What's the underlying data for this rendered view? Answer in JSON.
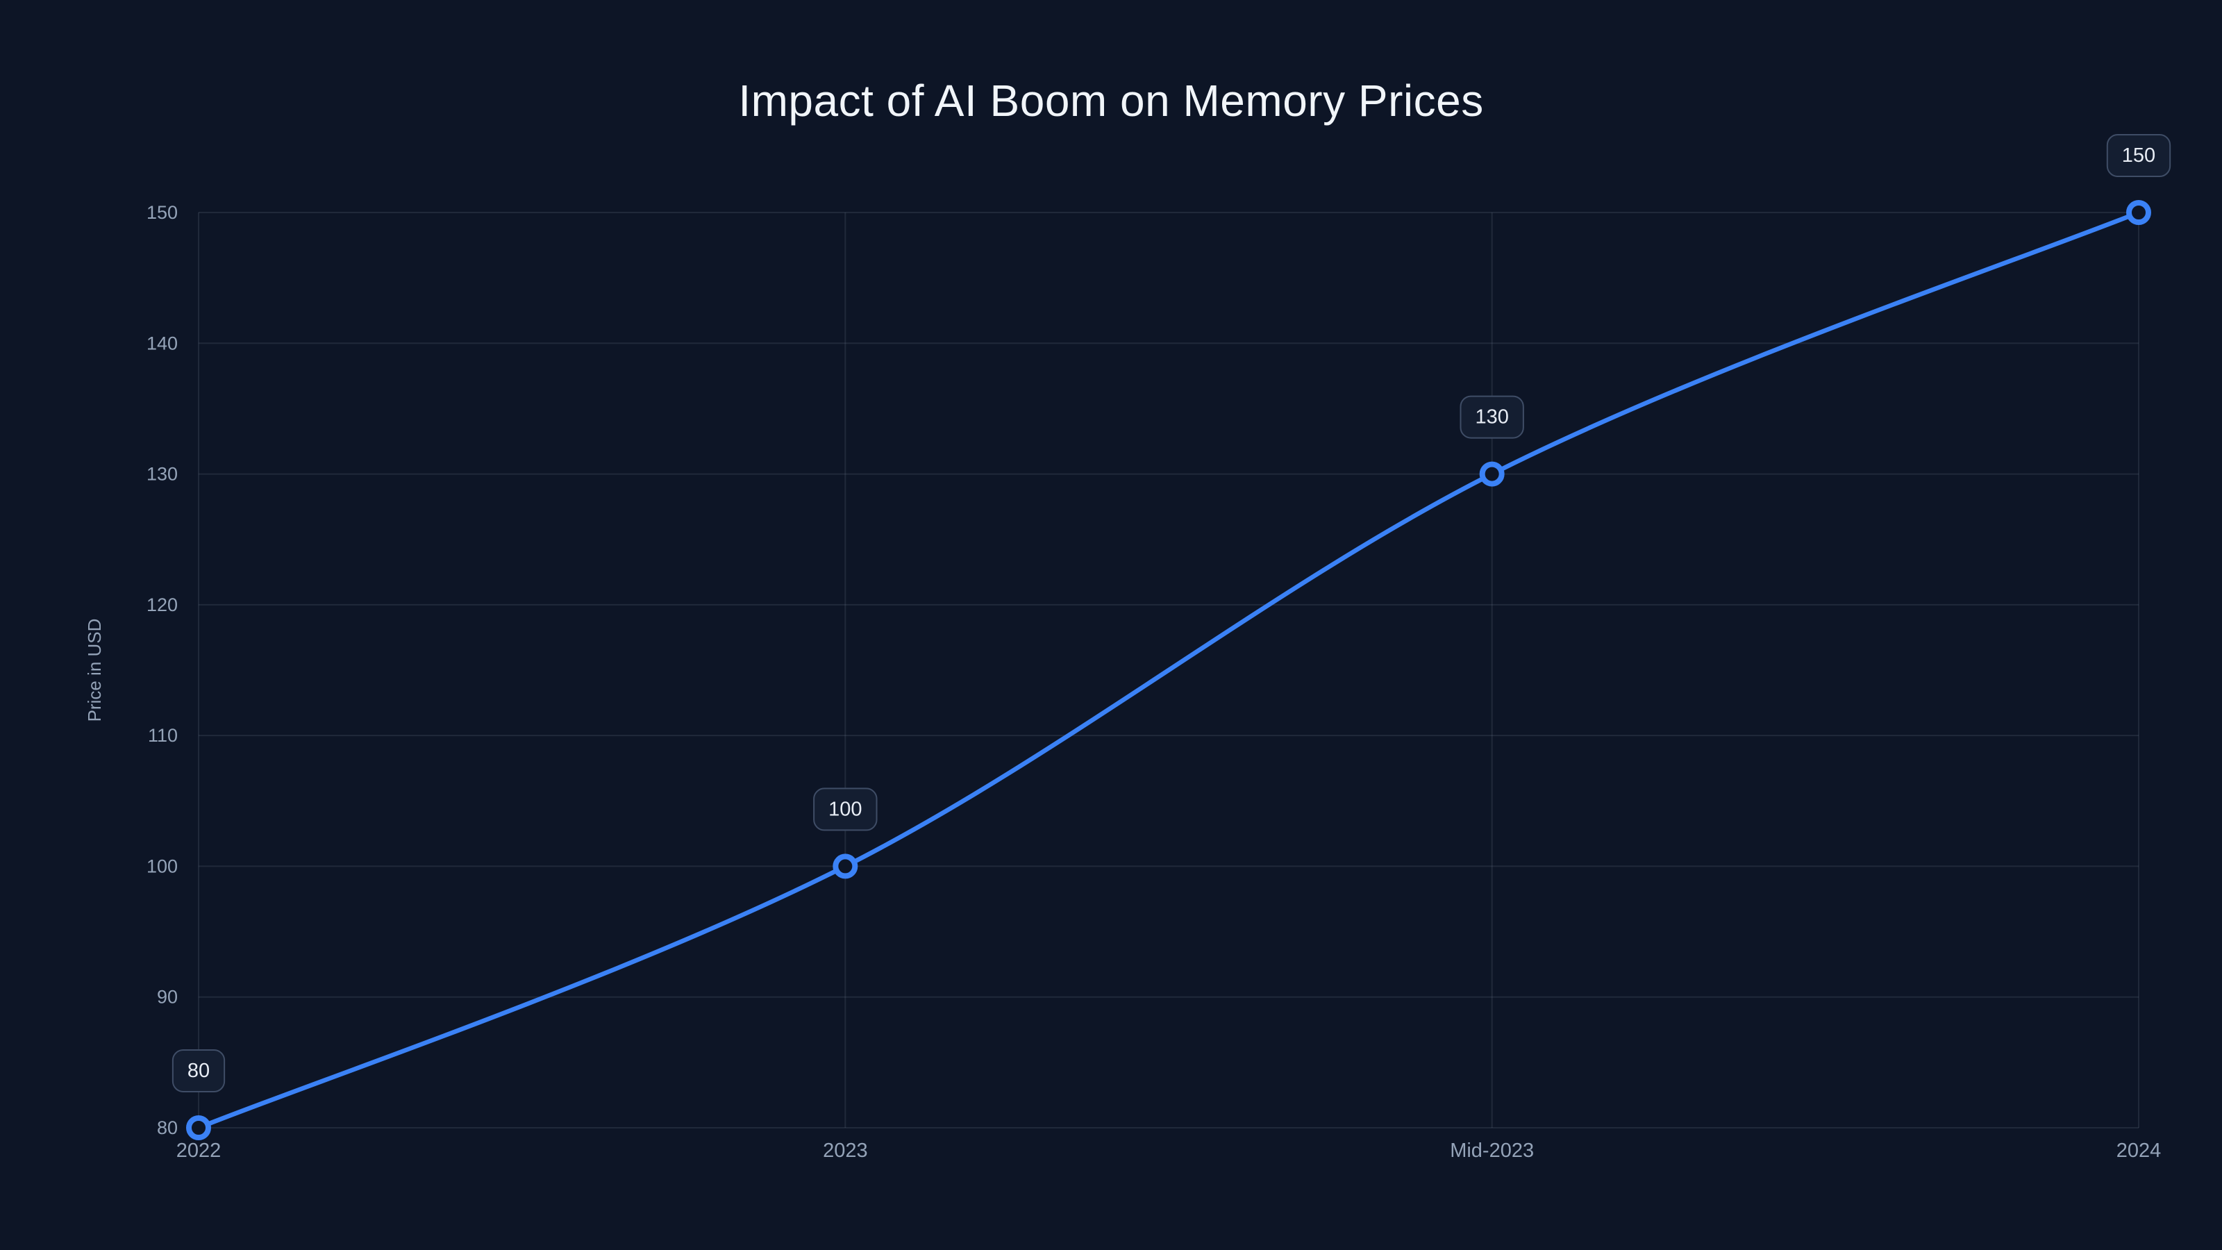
{
  "chart_data": {
    "type": "line",
    "title": "Impact of AI Boom on Memory Prices",
    "xlabel": "",
    "ylabel": "Price in USD",
    "categories": [
      "2022",
      "2023",
      "Mid-2023",
      "2024"
    ],
    "values": [
      80,
      100,
      130,
      150
    ],
    "point_labels": [
      "80",
      "100",
      "130",
      "150"
    ],
    "ylim": [
      80,
      150
    ],
    "y_ticks": [
      80,
      90,
      100,
      110,
      120,
      130,
      140,
      150
    ],
    "grid": true,
    "legend": false,
    "colors": {
      "background": "#0d1526",
      "line": "#3b82f6",
      "grid": "rgba(148,163,184,0.14)",
      "tick_text": "#94a3b8",
      "title_text": "#f1f5f9",
      "point_fill": "#0d1526",
      "badge_fill": "#141e31",
      "badge_border": "#3f4d66",
      "badge_text": "#e8edf5"
    }
  }
}
